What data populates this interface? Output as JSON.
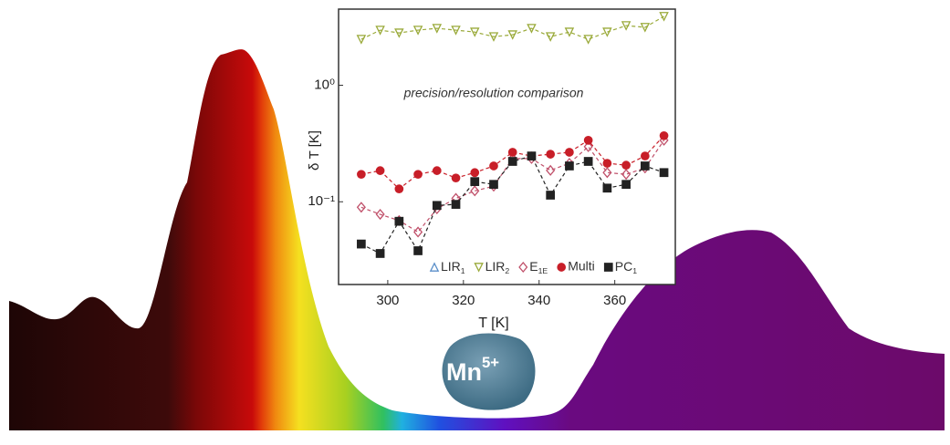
{
  "chart_data": {
    "type": "line",
    "title": "precision/resolution comparison",
    "x_label": "T [K]",
    "y_label": "δ T [K]",
    "badge": "Mn5+",
    "log_y": true,
    "x": [
      293,
      298,
      303,
      308,
      313,
      318,
      323,
      328,
      333,
      338,
      343,
      348,
      353,
      358,
      363,
      368,
      373
    ],
    "xlim": [
      287,
      376
    ],
    "xticks": [
      300,
      320,
      340,
      360
    ],
    "ylim": [
      0.0195,
      4.5
    ],
    "yticks": [
      {
        "value": 1,
        "label": "10⁰"
      },
      {
        "value": 0.1,
        "label": "10⁻¹"
      }
    ],
    "series": [
      {
        "name": "LIR1",
        "color": "#5b8fc9",
        "marker": "triangle-up",
        "values": [
          null,
          null,
          null,
          null,
          null,
          null,
          null,
          null,
          null,
          null,
          null,
          null,
          null,
          null,
          null,
          null,
          null
        ]
      },
      {
        "name": "LIR2",
        "color": "#9aaa3a",
        "marker": "triangle-down",
        "values": [
          2.48,
          2.97,
          2.81,
          2.97,
          3.08,
          2.97,
          2.86,
          2.61,
          2.71,
          3.08,
          2.61,
          2.86,
          2.48,
          2.86,
          3.25,
          3.14,
          3.9
        ]
      },
      {
        "name": "E1E",
        "color": "#c0506a",
        "marker": "diamond",
        "values": [
          0.0897,
          0.078,
          0.069,
          0.055,
          0.087,
          0.107,
          0.124,
          0.136,
          0.235,
          0.235,
          0.186,
          0.214,
          0.297,
          0.178,
          0.172,
          0.195,
          0.337
        ]
      },
      {
        "name": "Multi",
        "color": "#c81e28",
        "marker": "circle",
        "values": [
          0.172,
          0.185,
          0.129,
          0.172,
          0.185,
          0.16,
          0.178,
          0.203,
          0.266,
          0.247,
          0.256,
          0.266,
          0.337,
          0.214,
          0.206,
          0.247,
          0.369
        ]
      },
      {
        "name": "PC1",
        "color": "#222222",
        "marker": "square",
        "values": [
          0.0434,
          0.036,
          0.068,
          0.038,
          0.093,
          0.095,
          0.149,
          0.141,
          0.222,
          0.247,
          0.114,
          0.203,
          0.222,
          0.131,
          0.141,
          0.203,
          0.178
        ]
      }
    ]
  }
}
